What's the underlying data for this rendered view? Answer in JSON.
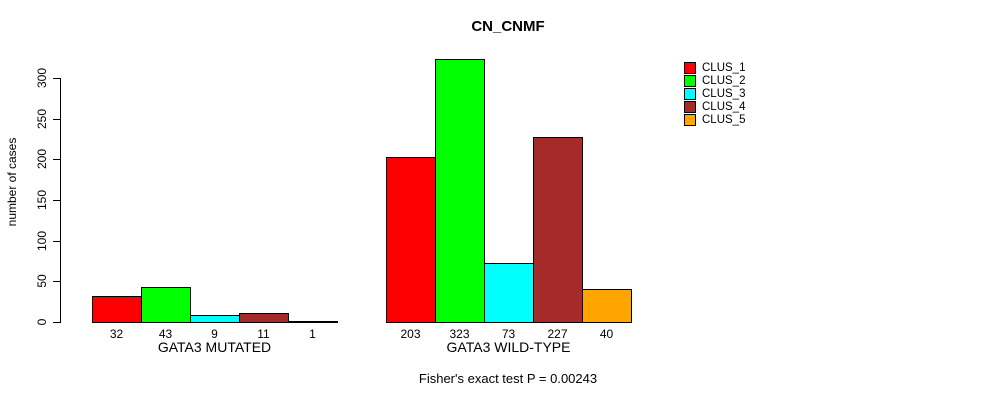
{
  "chart_data": {
    "type": "bar",
    "title": "CN_CNMF",
    "ylabel": "number of cases",
    "xlabel": "",
    "annotation": "Fisher's exact test P = 0.00243",
    "ylim": [
      0,
      300
    ],
    "yticks": [
      0,
      50,
      100,
      150,
      200,
      250,
      300
    ],
    "grid": false,
    "legend_position": "right",
    "value_labels_shown": true,
    "categories": [
      "GATA3 MUTATED",
      "GATA3 WILD-TYPE"
    ],
    "series": [
      {
        "name": "CLUS_1",
        "color": "#FF0000",
        "values": [
          32,
          203
        ]
      },
      {
        "name": "CLUS_2",
        "color": "#00FF00",
        "values": [
          43,
          323
        ]
      },
      {
        "name": "CLUS_3",
        "color": "#00FFFF",
        "values": [
          9,
          73
        ]
      },
      {
        "name": "CLUS_4",
        "color": "#A52A2A",
        "values": [
          11,
          227
        ]
      },
      {
        "name": "CLUS_5",
        "color": "#FFA500",
        "values": [
          1,
          40
        ]
      }
    ]
  }
}
